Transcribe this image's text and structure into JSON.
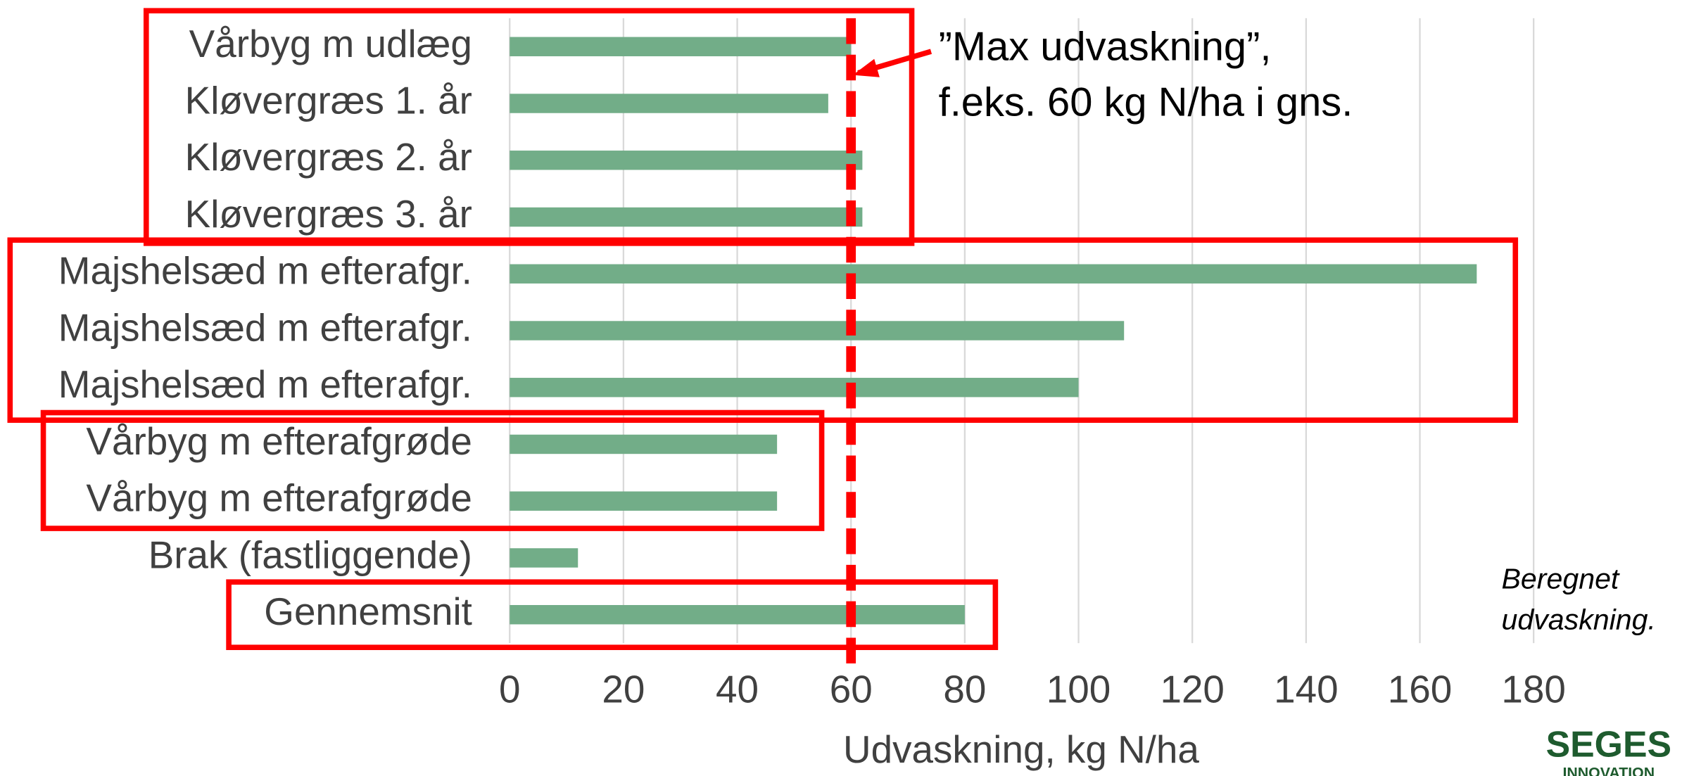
{
  "chart_data": {
    "type": "bar",
    "orientation": "horizontal",
    "categories": [
      "Vårbyg m udlæg",
      "Kløvergræs 1. år",
      "Kløvergræs 2. år",
      "Kløvergræs 3. år",
      "Majshelsæd m efterafgr.",
      "Majshelsæd m efterafgr.",
      "Majshelsæd m efterafgr.",
      "Vårbyg m efterafgrøde",
      "Vårbyg m efterafgrøde",
      "Brak (fastliggende)",
      "Gennemsnit"
    ],
    "values": [
      60,
      56,
      62,
      62,
      170,
      108,
      100,
      47,
      47,
      12,
      80
    ],
    "color": "#72ad88",
    "xlim": [
      0,
      180
    ],
    "xticks": [
      0,
      20,
      40,
      60,
      80,
      100,
      120,
      140,
      160,
      180
    ],
    "grid": true,
    "xlabel": "Udvaskning, kg N/ha",
    "reference_line": {
      "value": 60,
      "color": "#ff0000"
    },
    "annotations": [
      "”Max udvaskning”,",
      "f.eks. 60 kg N/ha i gns."
    ],
    "note": [
      "Beregnet",
      "udvaskning."
    ],
    "logo": [
      "SEGES",
      "INNOVATION"
    ]
  }
}
